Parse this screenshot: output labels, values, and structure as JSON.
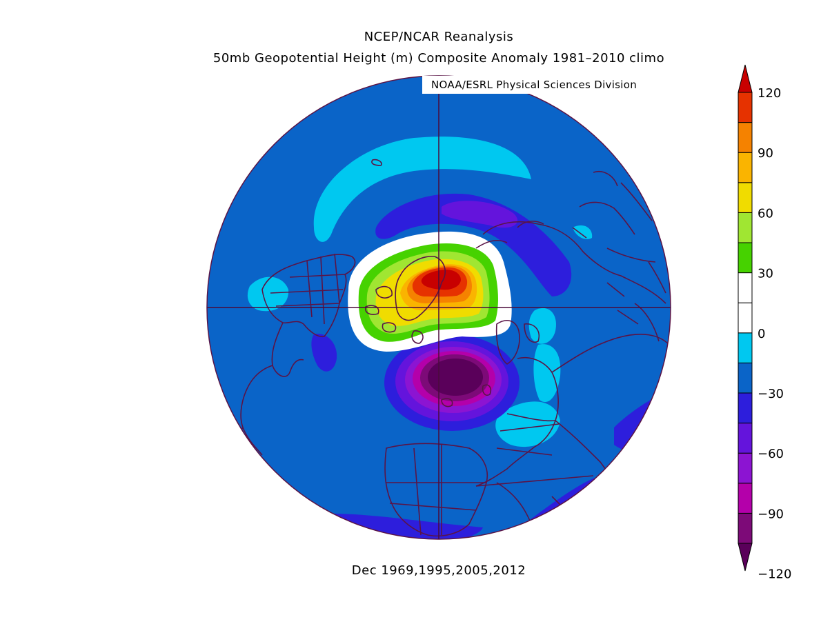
{
  "header": {
    "title": "NCEP/NCAR Reanalysis",
    "subtitle": "50mb Geopotential Height (m) Composite Anomaly 1981–2010 climo",
    "credit": "NOAA/ESRL Physical Sciences Division"
  },
  "footer": {
    "dates": "Dec 1969,1995,2005,2012"
  },
  "colorbar": {
    "levels": [
      {
        "color": "#5a005a"
      },
      {
        "color": "#7d0a78"
      },
      {
        "color": "#b400aa"
      },
      {
        "color": "#8c14d2"
      },
      {
        "color": "#6414dc"
      },
      {
        "color": "#2d1edc"
      },
      {
        "color": "#0a64c8"
      },
      {
        "color": "#00c8f0"
      },
      {
        "color": "#ffffff"
      },
      {
        "color": "#ffffff"
      },
      {
        "color": "#46d200"
      },
      {
        "color": "#a0e632"
      },
      {
        "color": "#f0dc00"
      },
      {
        "color": "#fab400"
      },
      {
        "color": "#f58200"
      },
      {
        "color": "#e63200"
      },
      {
        "color": "#c80000"
      }
    ],
    "labels": [
      "120",
      "90",
      "60",
      "30",
      "0",
      "−30",
      "−60",
      "−90",
      "−120"
    ]
  },
  "map": {
    "projection": "north-polar-stereographic",
    "background_color": "#0a64c8",
    "coastline_color": "#5a1446"
  }
}
